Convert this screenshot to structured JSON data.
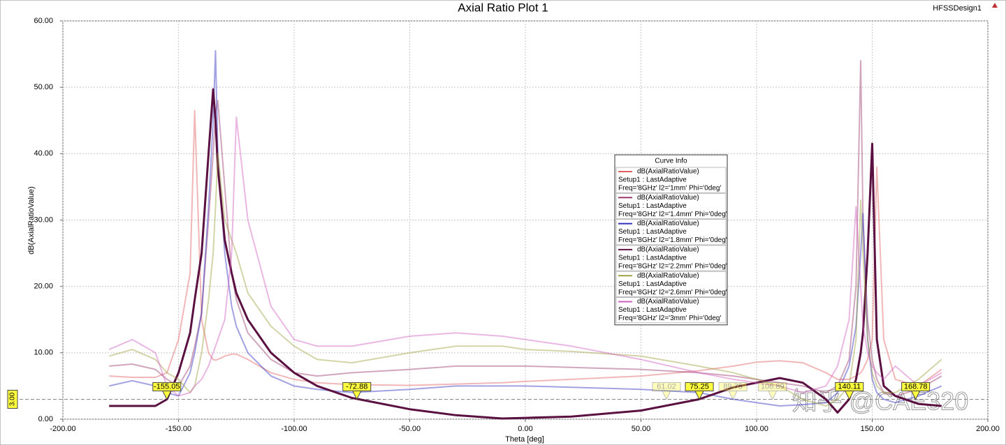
{
  "chart_data": {
    "type": "line",
    "title": "Axial Ratio Plot 1",
    "design_name": "HFSSDesign1",
    "x_label": "Theta [deg]",
    "y_label": "dB(AxialRatioValue)",
    "legend_title": "Curve Info",
    "watermark": "知乎 @CAE320",
    "xlim": [
      -200,
      200
    ],
    "ylim": [
      0,
      60
    ],
    "xticks": [
      {
        "value": -200,
        "label": "-200.00"
      },
      {
        "value": -150,
        "label": "-150.00"
      },
      {
        "value": -100,
        "label": "-100.00"
      },
      {
        "value": -50,
        "label": "-50.00"
      },
      {
        "value": 0,
        "label": "0.00"
      },
      {
        "value": 50,
        "label": "50.00"
      },
      {
        "value": 100,
        "label": "100.00"
      },
      {
        "value": 150,
        "label": "150.00"
      },
      {
        "value": 200,
        "label": "200.00"
      }
    ],
    "yticks": [
      {
        "value": 0,
        "label": "0.00"
      },
      {
        "value": 10,
        "label": "10.00"
      },
      {
        "value": 20,
        "label": "20.00"
      },
      {
        "value": 30,
        "label": "30.00"
      },
      {
        "value": 40,
        "label": "40.00"
      },
      {
        "value": 50,
        "label": "50.00"
      },
      {
        "value": 60,
        "label": "60.00"
      }
    ],
    "grid": true,
    "reference_line": {
      "value": 3,
      "label": "3.00"
    },
    "markers": [
      -155.05,
      -72.88,
      75.25,
      140.11,
      168.78
    ],
    "inactive_markers": [
      61.02,
      89.75,
      106.89
    ],
    "x": [
      -180,
      -170,
      -160,
      -155,
      -150,
      -145,
      -143,
      -140,
      -137,
      -135,
      -134,
      -133,
      -130,
      -127,
      -125,
      -120,
      -110,
      -100,
      -90,
      -75,
      -50,
      -30,
      -10,
      0,
      20,
      50,
      75,
      90,
      100,
      110,
      120,
      130,
      135,
      140,
      143,
      145,
      146,
      148,
      150,
      152,
      155,
      160,
      170,
      180
    ],
    "series": [
      {
        "name": "dB(AxialRatioValue)",
        "setup": "Setup1 : LastAdaptive",
        "variation": "Freq='8GHz' l2='1mm' Phi='0deg'",
        "color": "#e06060",
        "opacity": 0.45,
        "width": 2,
        "values": [
          6.5,
          6.3,
          6.3,
          7,
          12,
          22,
          46.5,
          15,
          10,
          9,
          8.9,
          9,
          9.5,
          9.8,
          9.8,
          9,
          7,
          6,
          5.5,
          5.2,
          5.1,
          5.3,
          5.5,
          5.7,
          6,
          6.5,
          7.3,
          8,
          8.6,
          8.8,
          8.5,
          7,
          6,
          6,
          6.5,
          7,
          7.5,
          9,
          12,
          38,
          12,
          6,
          5,
          7.5
        ]
      },
      {
        "name": "dB(AxialRatioValue)",
        "setup": "Setup1 : LastAdaptive",
        "variation": "Freq='8GHz' l2='1.4mm' Phi='0deg'",
        "color": "#9a3a6a",
        "opacity": 0.45,
        "width": 2,
        "values": [
          8,
          8.3,
          7.5,
          6,
          5,
          8,
          11,
          16,
          30,
          40,
          46,
          48,
          35,
          22,
          18,
          13,
          9,
          7,
          6.5,
          7,
          7.5,
          8,
          8,
          8,
          7.8,
          7.5,
          7,
          6.5,
          6,
          5.5,
          5,
          4,
          5,
          9,
          20,
          54,
          30,
          15,
          9,
          6,
          4,
          3.5,
          4.5,
          6.5
        ]
      },
      {
        "name": "dB(AxialRatioValue)",
        "setup": "Setup1 : LastAdaptive",
        "variation": "Freq='8GHz' l2='1.8mm' Phi='0deg'",
        "color": "#3030c0",
        "opacity": 0.45,
        "width": 2,
        "values": [
          5,
          5.8,
          5,
          4,
          3.5,
          7,
          10,
          16,
          32,
          45,
          55.5,
          40,
          25,
          17,
          14,
          10,
          6.5,
          5,
          4.5,
          4,
          4.5,
          5,
          5,
          5,
          4.8,
          4.5,
          4,
          3,
          2.5,
          2,
          2.2,
          2.5,
          4,
          8,
          14,
          25,
          31,
          12,
          6,
          4,
          3,
          2.5,
          3.5,
          5
        ]
      },
      {
        "name": "dB(AxialRatioValue)",
        "setup": "Setup1 : LastAdaptive",
        "variation": "Freq='8GHz' l2='2.2mm' Phi='0deg'",
        "color": "#5a1040",
        "opacity": 1,
        "width": 3,
        "values": [
          2,
          2,
          2,
          3,
          7,
          13,
          18,
          25,
          40,
          49.7,
          45,
          38,
          27,
          22,
          19,
          15,
          10,
          7,
          5,
          3.2,
          1.5,
          0.6,
          0.1,
          0.2,
          0.4,
          1.3,
          3,
          4.8,
          5.5,
          6.2,
          5.5,
          3,
          1,
          3,
          6,
          10,
          13,
          25,
          41.5,
          12,
          5,
          3.5,
          2.3,
          2
        ]
      },
      {
        "name": "dB(AxialRatioValue)",
        "setup": "Setup1 : LastAdaptive",
        "variation": "Freq='8GHz' l2='2.6mm' Phi='0deg'",
        "color": "#a0a040",
        "opacity": 0.45,
        "width": 2,
        "values": [
          9.5,
          10.5,
          9,
          7,
          6,
          4,
          5,
          10,
          18,
          25,
          32,
          40,
          30,
          27,
          25,
          19,
          14,
          11,
          9,
          8.5,
          10,
          11,
          11,
          10.5,
          10.2,
          9.5,
          8,
          7,
          6,
          5,
          3,
          2,
          3,
          5,
          12,
          33,
          25,
          12,
          7,
          5,
          4,
          4,
          6,
          9
        ]
      },
      {
        "name": "dB(AxialRatioValue)",
        "setup": "Setup1 : LastAdaptive",
        "variation": "Freq='8GHz' l2='3mm' Phi='0deg'",
        "color": "#d060c0",
        "opacity": 0.45,
        "width": 2,
        "values": [
          10.5,
          12,
          10,
          5,
          3.5,
          4,
          5,
          6,
          8,
          10,
          11,
          12,
          15,
          25,
          45.5,
          30,
          17,
          12,
          11,
          11,
          12.5,
          13,
          12.5,
          12,
          11,
          9,
          7,
          6,
          5.5,
          5,
          4,
          5,
          8,
          15,
          32,
          20,
          14,
          10,
          8,
          7,
          6,
          8,
          5,
          7
        ]
      }
    ]
  }
}
